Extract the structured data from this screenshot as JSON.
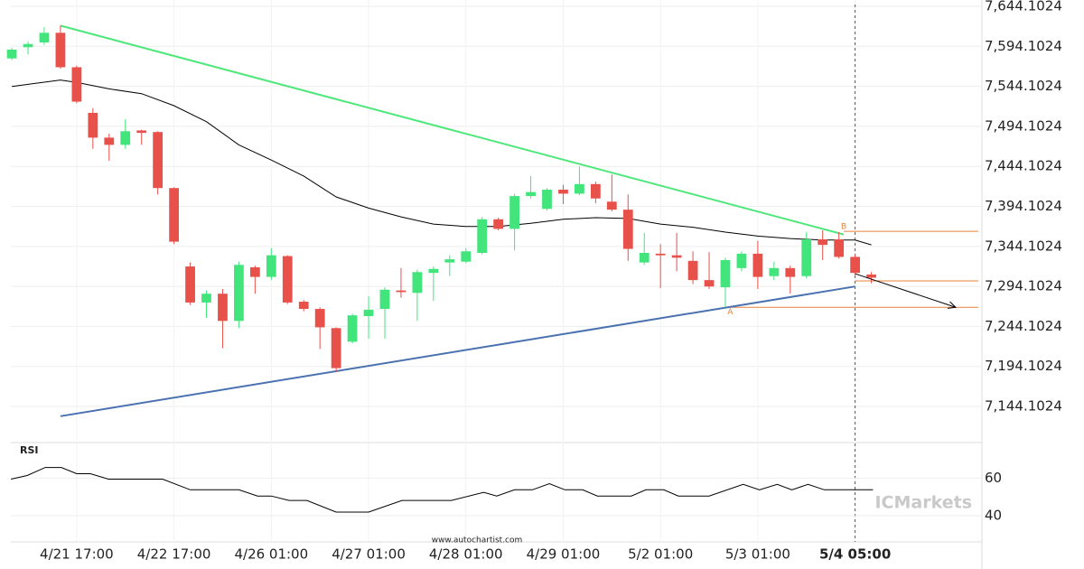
{
  "chart_data": [
    {
      "type": "candlestick",
      "x": [
        0,
        1,
        2,
        3,
        4,
        5,
        6,
        7,
        8,
        9,
        10,
        11,
        12,
        13,
        14,
        15,
        16,
        17,
        18,
        19,
        20,
        21,
        22,
        23,
        24,
        25,
        26,
        27,
        28,
        29,
        30,
        31,
        32,
        33,
        34,
        35,
        36,
        37,
        38,
        39,
        40,
        41,
        42,
        43,
        44,
        45,
        46,
        47,
        48,
        49,
        50,
        51,
        52,
        53
      ],
      "open": [
        7579,
        7593,
        7599,
        7611,
        7568,
        7511,
        7480,
        7471,
        7489,
        7487,
        7417,
        7319,
        7274,
        7285,
        7251,
        7318,
        7306,
        7332,
        7275,
        7266,
        7242,
        7225,
        7257,
        7266,
        7289,
        7286,
        7311,
        7324,
        7325,
        7336,
        7378,
        7366,
        7407,
        7391,
        7415,
        7410,
        7422,
        7400,
        7390,
        7324,
        7335,
        7333,
        7326,
        7302,
        7293,
        7317,
        7335,
        7307,
        7317,
        7307,
        7353,
        7353,
        7331,
        7309
      ],
      "high": [
        7592,
        7600,
        7618,
        7620,
        7570,
        7517,
        7485,
        7503,
        7490,
        7488,
        7418,
        7324,
        7289,
        7291,
        7325,
        7320,
        7342,
        7333,
        7277,
        7268,
        7243,
        7260,
        7282,
        7293,
        7317,
        7315,
        7319,
        7333,
        7342,
        7381,
        7380,
        7410,
        7432,
        7417,
        7421,
        7444,
        7425,
        7434,
        7409,
        7361,
        7347,
        7361,
        7338,
        7337,
        7330,
        7338,
        7351,
        7325,
        7320,
        7362,
        7364,
        7362,
        7334,
        7312
      ],
      "low": [
        7577,
        7584,
        7596,
        7566,
        7523,
        7466,
        7451,
        7466,
        7471,
        7409,
        7347,
        7271,
        7255,
        7217,
        7242,
        7285,
        7302,
        7272,
        7263,
        7216,
        7187,
        7223,
        7229,
        7229,
        7280,
        7251,
        7276,
        7307,
        7323,
        7334,
        7364,
        7339,
        7404,
        7389,
        7397,
        7408,
        7398,
        7388,
        7326,
        7321,
        7292,
        7313,
        7297,
        7291,
        7268,
        7313,
        7291,
        7302,
        7285,
        7304,
        7327,
        7329,
        7308,
        7298
      ],
      "close": [
        7590,
        7597,
        7611,
        7568,
        7525,
        7480,
        7471,
        7488,
        7486,
        7417,
        7350,
        7274,
        7285,
        7251,
        7321,
        7306,
        7333,
        7274,
        7266,
        7243,
        7192,
        7258,
        7265,
        7290,
        7287,
        7312,
        7316,
        7328,
        7338,
        7378,
        7366,
        7407,
        7412,
        7415,
        7410,
        7422,
        7404,
        7390,
        7341,
        7336,
        7333,
        7330,
        7302,
        7294,
        7327,
        7335,
        7306,
        7317,
        7306,
        7353,
        7346,
        7331,
        7311,
        7305
      ],
      "up_color": "#41e57c",
      "down_color": "#e8504a",
      "ma": {
        "color": "#000000",
        "x": [
          0,
          3,
          4,
          6,
          8,
          10,
          12,
          14,
          16,
          18,
          20,
          22,
          24,
          26,
          28,
          30,
          32,
          34,
          36,
          38,
          40,
          42,
          44,
          46,
          48,
          50,
          52,
          53
        ],
        "values": [
          7544,
          7552,
          7549,
          7541,
          7535,
          7520,
          7500,
          7471,
          7452,
          7432,
          7406,
          7392,
          7381,
          7372,
          7369,
          7369,
          7373,
          7378,
          7380,
          7379,
          7372,
          7368,
          7362,
          7357,
          7354,
          7352,
          7352,
          7346
        ]
      },
      "trendlines": [
        {
          "color": "#4de87a",
          "x": [
            3,
            51.3
          ],
          "values": [
            7620,
            7359
          ]
        },
        {
          "color": "#4a72b0",
          "x": [
            3,
            52
          ],
          "values": [
            7132,
            7294
          ]
        }
      ],
      "levels": [
        {
          "value": 7363,
          "x_start": 51.3,
          "color": "#e8823a"
        },
        {
          "value": 7301,
          "x_start": 52,
          "color": "#e8823a"
        },
        {
          "value": 7268,
          "x_start": 44.3,
          "color": "#e8823a"
        }
      ],
      "annotations": [
        {
          "text": "B",
          "x": 51.3,
          "value": 7369
        },
        {
          "text": "A",
          "x": 44.3,
          "value": 7262
        }
      ],
      "arrow": {
        "x": [
          52,
          58.2
        ],
        "values": [
          7310,
          7268
        ]
      },
      "cursor_x": 52,
      "xlim": [
        -0.06,
        59.82
      ],
      "xticks": [
        {
          "value": 4,
          "label": "4/21 17:00"
        },
        {
          "value": 10,
          "label": "4/22 17:00"
        },
        {
          "value": 16,
          "label": "4/26 01:00"
        },
        {
          "value": 22,
          "label": "4/27 01:00"
        },
        {
          "value": 28,
          "label": "4/28 01:00"
        },
        {
          "value": 34,
          "label": "4/29 01:00"
        },
        {
          "value": 40,
          "label": "5/2 01:00"
        },
        {
          "value": 46,
          "label": "5/3 01:00"
        },
        {
          "value": 52,
          "label": "5/4 05:00"
        }
      ],
      "ylim": [
        7099,
        7652
      ],
      "yticks": [
        {
          "value": 7144.1024,
          "label": "7,144.1024"
        },
        {
          "value": 7194.1024,
          "label": "7,194.1024"
        },
        {
          "value": 7244.1024,
          "label": "7,244.1024"
        },
        {
          "value": 7294.1024,
          "label": "7,294.1024"
        },
        {
          "value": 7344.1024,
          "label": "7,344.1024"
        },
        {
          "value": 7394.1024,
          "label": "7,394.1024"
        },
        {
          "value": 7444.1024,
          "label": "7,444.1024"
        },
        {
          "value": 7494.1024,
          "label": "7,494.1024"
        },
        {
          "value": 7544.1024,
          "label": "7,544.1024"
        },
        {
          "value": 7594.1024,
          "label": "7,594.1024"
        },
        {
          "value": 7644.1024,
          "label": "7,644.1024"
        }
      ],
      "grid": true
    },
    {
      "type": "line",
      "title": "RSI",
      "x": [
        -0.05,
        0.95,
        2.06,
        3.06,
        4.0,
        4.85,
        5.96,
        9.3,
        11.0,
        14.0,
        15.15,
        16.0,
        17.1,
        18.2,
        20.0,
        22.0,
        24.06,
        27.1,
        29.1,
        29.9,
        31.0,
        32.1,
        33.15,
        34.1,
        35.2,
        36.1,
        38.2,
        39.1,
        40.2,
        41.1,
        43.0,
        45.1,
        46.1,
        47.2,
        48.1,
        49.1,
        50.1,
        53.1
      ],
      "values": [
        59.5,
        61.4,
        65.7,
        65.7,
        62.4,
        62.4,
        59.5,
        59.5,
        53.8,
        53.8,
        50.5,
        50.5,
        48.1,
        48.1,
        41.9,
        41.9,
        48.1,
        48.1,
        52.4,
        50.5,
        53.8,
        53.8,
        57.1,
        53.8,
        53.8,
        50.5,
        50.5,
        53.8,
        53.8,
        50.5,
        50.5,
        56.7,
        53.8,
        56.7,
        53.8,
        56.7,
        53.8,
        53.8
      ],
      "color": "#000000",
      "xlim": [
        -0.06,
        59.82
      ],
      "ylim": [
        26,
        79
      ],
      "yticks": [
        40,
        60
      ],
      "grid": true
    }
  ],
  "watermark": "www.autochartist.com",
  "logo": "ICMarkets"
}
